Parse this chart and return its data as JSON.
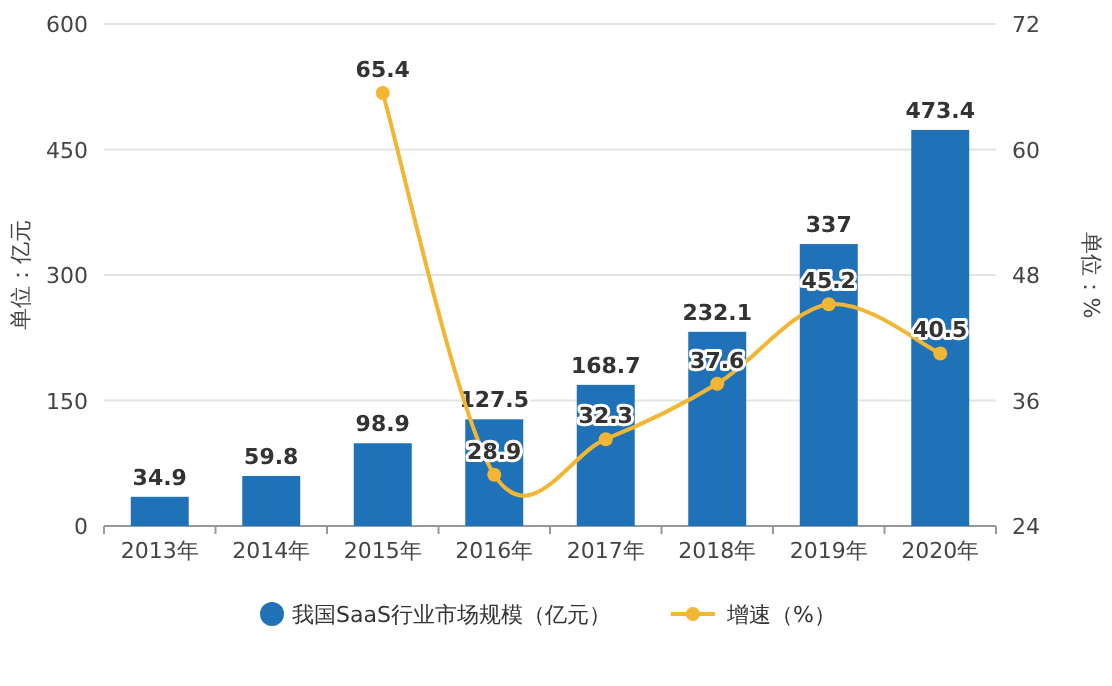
{
  "chart_data": {
    "type": "bar",
    "categories": [
      "2013年",
      "2014年",
      "2015年",
      "2016年",
      "2017年",
      "2018年",
      "2019年",
      "2020年"
    ],
    "series": [
      {
        "name": "我国SaaS行业市场规模（亿元）",
        "color": "#1f72b8",
        "values": [
          34.9,
          59.8,
          98.9,
          127.5,
          168.7,
          232.1,
          337,
          473.4
        ]
      },
      {
        "name": "增速（%）",
        "type": "line",
        "axis": "y2",
        "color": "#f2b632",
        "values": [
          null,
          null,
          65.4,
          28.9,
          32.3,
          37.6,
          45.2,
          40.5
        ]
      }
    ],
    "ylabel": "单位：亿元",
    "y2label": "单位：%",
    "ylim": [
      0,
      600
    ],
    "yticks": [
      0,
      150,
      300,
      450,
      600
    ],
    "y2lim": [
      24,
      72
    ],
    "y2ticks": [
      24,
      36,
      48,
      60,
      72
    ],
    "data_labels": true,
    "grid": "y",
    "legend": "bottom",
    "marker": "circle",
    "line_style": "solid"
  }
}
